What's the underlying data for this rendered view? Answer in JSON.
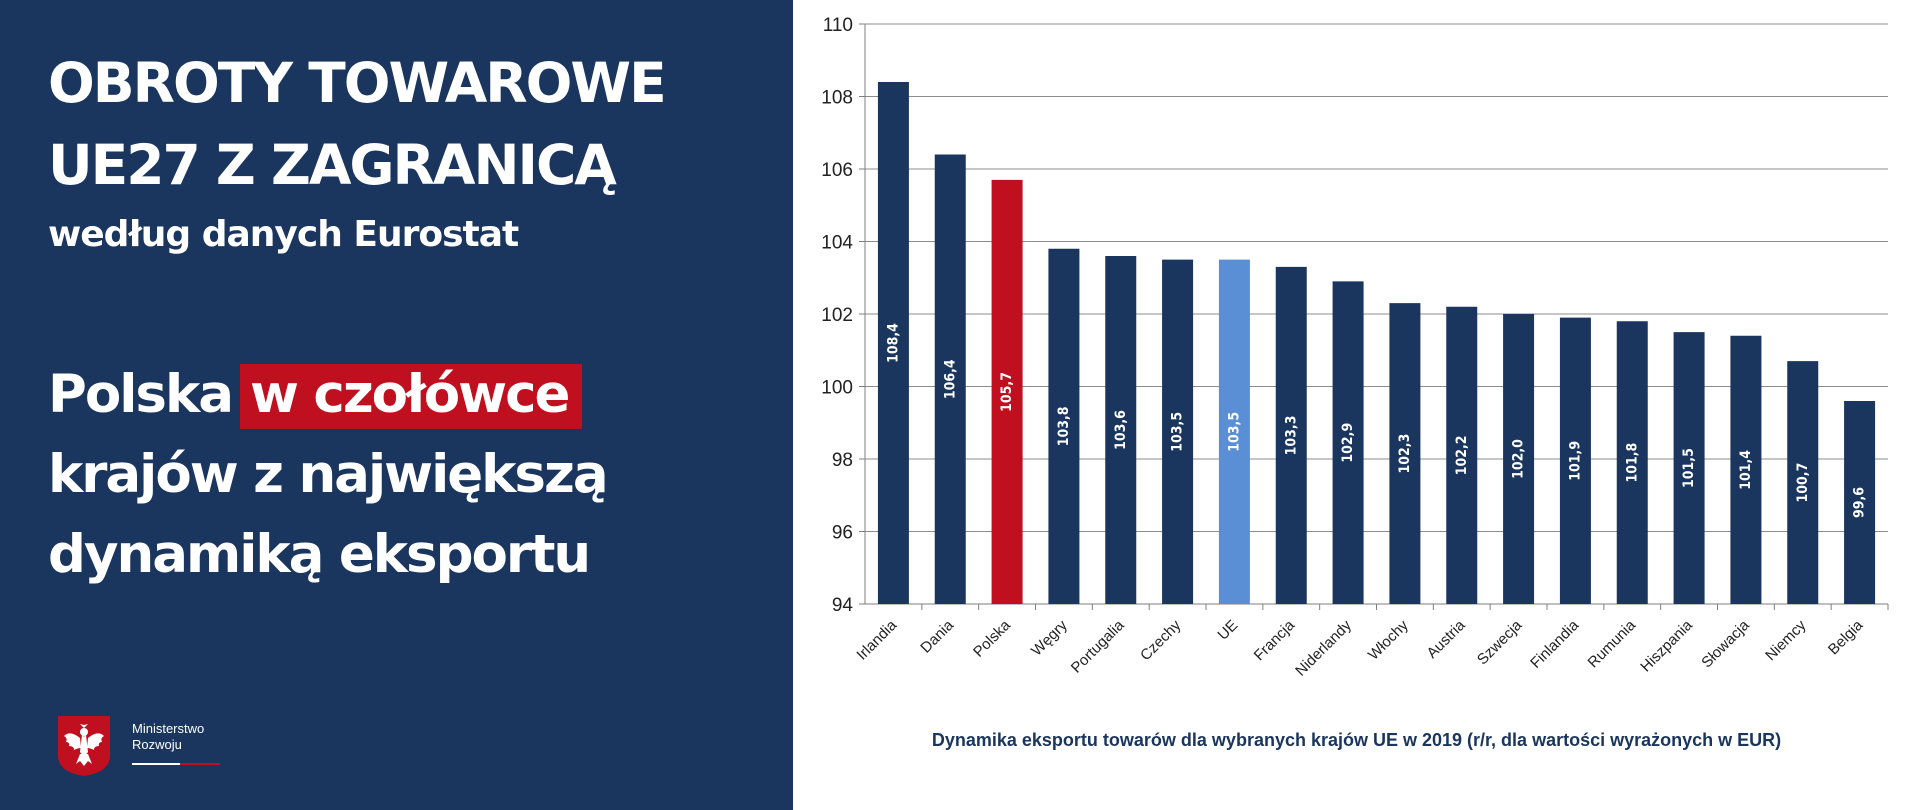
{
  "left_panel": {
    "headline_line1": "OBROTY TOWAROWE",
    "headline_line2": "UE27 Z ZAGRANICĄ",
    "subtitle": "według danych Eurostat",
    "message_prefix": "Polska",
    "message_highlight": "w czołówce",
    "message_line2": "krajów z największą",
    "message_line3": "dynamiką eksportu",
    "logo_line1": "Ministerstwo",
    "logo_line2": "Rozwoju",
    "logo_icon": "polish-eagle-emblem"
  },
  "colors": {
    "panel_bg": "#1a355e",
    "bar_default": "#1a355e",
    "bar_poland": "#c00f1e",
    "bar_eu": "#5b8fd5",
    "highlight": "#c00f1e"
  },
  "chart_data": {
    "type": "bar",
    "title": "Dynamika eksportu towarów dla wybranych krajów UE w 2019 (r/r, dla wartości wyrażonych w EUR)",
    "xlabel": "",
    "ylabel": "",
    "ylim": [
      94,
      110
    ],
    "y_ticks": [
      94,
      96,
      98,
      100,
      102,
      104,
      106,
      108,
      110
    ],
    "grid": true,
    "categories": [
      "Irlandia",
      "Dania",
      "Polska",
      "Węgry",
      "Portugalia",
      "Czechy",
      "UE",
      "Francja",
      "Niderlandy",
      "Włochy",
      "Austria",
      "Szwecja",
      "Finlandia",
      "Rumunia",
      "Hiszpania",
      "Słowacja",
      "Niemcy",
      "Belgia"
    ],
    "values": [
      108.4,
      106.4,
      105.7,
      103.8,
      103.6,
      103.5,
      103.5,
      103.3,
      102.9,
      102.3,
      102.2,
      102.0,
      101.9,
      101.8,
      101.5,
      101.4,
      100.7,
      99.6
    ],
    "value_labels": [
      "108,4",
      "106,4",
      "105,7",
      "103,8",
      "103,6",
      "103,5",
      "103,5",
      "103,3",
      "102,9",
      "102,3",
      "102,2",
      "102,0",
      "101,9",
      "101,8",
      "101,5",
      "101,4",
      "100,7",
      "99,6"
    ],
    "highlight": {
      "Polska": "#c00f1e",
      "UE": "#5b8fd5"
    }
  }
}
